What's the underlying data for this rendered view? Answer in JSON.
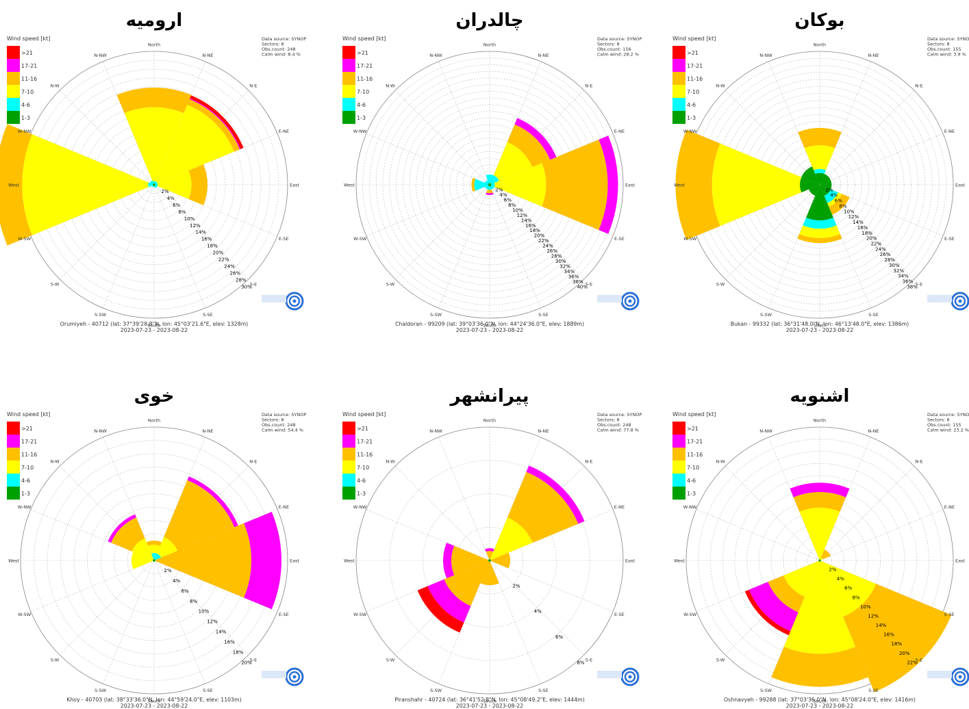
{
  "legend": {
    "title": "Wind speed [kt]",
    "bins": [
      {
        "label": ">21",
        "color": "#ff0000"
      },
      {
        "label": "17-21",
        "color": "#ff00ff"
      },
      {
        "label": "11-16",
        "color": "#ffc000"
      },
      {
        "label": "7-10",
        "color": "#ffff00"
      },
      {
        "label": "4-6",
        "color": "#00ffff"
      },
      {
        "label": "1-3",
        "color": "#00a000"
      }
    ]
  },
  "directions": [
    "North",
    "N-NE",
    "N-E",
    "E-NE",
    "East",
    "E-SE",
    "S-E",
    "S-SE",
    "South",
    "S-SW",
    "S-W",
    "W-SW",
    "West",
    "W-NW",
    "N-W",
    "N-NW"
  ],
  "period": "2023-07-23 - 2023-08-22",
  "chart_data": [
    {
      "type": "windrose",
      "title": "ارومیه",
      "info": [
        "Data source: SYNOP",
        "Sectors: 8",
        "Obs.count: 248",
        "Calm wind: 8.4 %"
      ],
      "station": "Orumiyeh - 40712 (lat: 37°39'28.8\"N, lon: 45°03'21.6\"E, elev: 1328m)",
      "rmax": 30,
      "ticks": [
        2,
        4,
        6,
        8,
        10,
        12,
        14,
        16,
        18,
        20,
        22,
        24,
        26,
        28,
        30
      ],
      "sectors": [
        {
          "dir": "North",
          "cum": [
            0.3,
            0.8,
            17,
            21.3,
            21.3,
            21.3
          ]
        },
        {
          "dir": "N-E",
          "cum": [
            0.3,
            0.8,
            19,
            20.3,
            20.5,
            21.2
          ]
        },
        {
          "dir": "East",
          "cum": [
            0.3,
            0.8,
            8.2,
            11.7,
            11.7,
            11.7
          ]
        },
        {
          "dir": "S-E",
          "cum": [
            0.3,
            0.8,
            0.8,
            0.8,
            0.8,
            0.8
          ]
        },
        {
          "dir": "South",
          "cum": [
            0.3,
            0.5,
            0.5,
            0.5,
            0.5,
            0.5
          ]
        },
        {
          "dir": "S-W",
          "cum": [
            0.3,
            0.5,
            0.5,
            0.5,
            0.5,
            0.5
          ]
        },
        {
          "dir": "West",
          "cum": [
            0.3,
            1.3,
            28.9,
            34.8,
            34.8,
            34.8
          ]
        },
        {
          "dir": "N-W",
          "cum": [
            0.3,
            1.0,
            1.0,
            1.0,
            1.0,
            1.0
          ]
        }
      ]
    },
    {
      "type": "windrose",
      "title": "چالدران",
      "info": [
        "Data source: SYNOP",
        "Sectors: 8",
        "Obs.count: 156",
        "Calm wind: 28.2 %"
      ],
      "station": "Chaldoran - 99209 (lat: 39°03'36.0\"N, lon: 44°24'36.0\"E, elev: 1889m)",
      "rmax": 40,
      "ticks": [
        2,
        4,
        6,
        8,
        10,
        12,
        14,
        16,
        18,
        20,
        22,
        24,
        26,
        28,
        30,
        32,
        34,
        36,
        38,
        40
      ],
      "sectors": [
        {
          "dir": "North",
          "cum": [
            0.5,
            3.0,
            3.0,
            3.0,
            3.0,
            3.0
          ]
        },
        {
          "dir": "N-E",
          "cum": [
            0.5,
            3.0,
            13.5,
            19.1,
            21.1,
            21.1
          ]
        },
        {
          "dir": "East",
          "cum": [
            0.5,
            1.5,
            16.5,
            34.5,
            37.5,
            37.5
          ]
        },
        {
          "dir": "S-E",
          "cum": [
            0.5,
            1.5,
            1.5,
            1.5,
            1.5,
            1.5
          ]
        },
        {
          "dir": "South",
          "cum": [
            0.5,
            1.5,
            1.5,
            2.5,
            3.0,
            3.0
          ]
        },
        {
          "dir": "S-W",
          "cum": [
            0.5,
            1.5,
            1.5,
            1.5,
            1.5,
            1.5
          ]
        },
        {
          "dir": "West",
          "cum": [
            0.5,
            4.5,
            4.5,
            5.3,
            5.3,
            5.3
          ]
        },
        {
          "dir": "N-W",
          "cum": [
            0.5,
            1.5,
            1.5,
            1.5,
            1.5,
            1.5
          ]
        }
      ]
    },
    {
      "type": "windrose",
      "title": "بوکان",
      "info": [
        "Data source: SYNOP",
        "Sectors: 8",
        "Obs.count: 155",
        "Calm wind: 3.9 %"
      ],
      "station": "Bukan - 99332 (lat: 36°31'48.0\"N, lon: 46°13'48.0\"E, elev: 1386m)",
      "rmax": 38,
      "ticks": [
        2,
        4,
        6,
        8,
        10,
        12,
        14,
        16,
        18,
        20,
        22,
        24,
        26,
        28,
        30,
        32,
        34,
        36,
        38
      ],
      "sectors": [
        {
          "dir": "North",
          "cum": [
            3.3,
            4.4,
            11.0,
            15.8,
            15.8,
            15.8
          ]
        },
        {
          "dir": "N-E",
          "cum": [
            3.3,
            3.3,
            3.3,
            3.3,
            3.3,
            3.3
          ]
        },
        {
          "dir": "East",
          "cum": [
            3.3,
            3.3,
            3.3,
            3.3,
            3.3,
            3.3
          ]
        },
        {
          "dir": "S-E",
          "cum": [
            3.3,
            5.5,
            6.6,
            9.0,
            9.0,
            9.0
          ]
        },
        {
          "dir": "South",
          "cum": [
            9.9,
            12.2,
            14.8,
            16.2,
            16.2,
            16.2
          ]
        },
        {
          "dir": "S-W",
          "cum": [
            3.3,
            3.3,
            3.3,
            3.3,
            3.3,
            3.3
          ]
        },
        {
          "dir": "West",
          "cum": [
            5.5,
            5.5,
            29.9,
            40.0,
            40.0,
            40.0
          ]
        },
        {
          "dir": "N-W",
          "cum": [
            5.5,
            5.5,
            5.5,
            5.5,
            5.5,
            5.5
          ]
        }
      ]
    },
    {
      "type": "windrose",
      "title": "خوی",
      "info": [
        "Data source: SYNOP",
        "Sectors: 8",
        "Obs.count: 248",
        "Calm wind: 54.4 %"
      ],
      "station": "Khoy - 40703 (lat: 38°33'36.0\"N, lon: 44°59'24.0\"E, elev: 1103m)",
      "rmax": 20,
      "ticks": [
        2,
        4,
        6,
        8,
        10,
        12,
        14,
        16,
        18,
        20
      ],
      "sectors": [
        {
          "dir": "North",
          "cum": [
            0.2,
            1.1,
            2.3,
            2.9,
            2.9,
            2.9
          ]
        },
        {
          "dir": "N-E",
          "cum": [
            0.2,
            1.1,
            3.7,
            12.7,
            13.3,
            13.3
          ]
        },
        {
          "dir": "East",
          "cum": [
            0.2,
            0.2,
            0.2,
            14.2,
            18.6,
            18.6
          ]
        },
        {
          "dir": "S-E",
          "cum": [
            0.2,
            0.2,
            0.2,
            0.2,
            0.2,
            0.2
          ]
        },
        {
          "dir": "South",
          "cum": [
            0.2,
            0.2,
            0.2,
            0.2,
            0.2,
            0.2
          ]
        },
        {
          "dir": "S-W",
          "cum": [
            0.2,
            0.2,
            0.2,
            0.2,
            0.2,
            0.2
          ]
        },
        {
          "dir": "West",
          "cum": [
            0.2,
            0.2,
            3.3,
            3.3,
            3.3,
            3.3
          ]
        },
        {
          "dir": "N-W",
          "cum": [
            0.2,
            0.2,
            3.5,
            6.8,
            7.3,
            7.3
          ]
        }
      ]
    },
    {
      "type": "windrose",
      "title": "پیرانشهر",
      "info": [
        "Data source: SYNOP",
        "Sectors: 8",
        "Obs.count: 248",
        "Calm wind: 77.8 %"
      ],
      "station": "Piranshahr - 40724 (lat: 36°41'52.8\"N, lon: 45°08'49.2\"E, elev: 1444m)",
      "rmax": 10,
      "ticks": [
        2,
        4,
        6,
        8
      ],
      "sectors": [
        {
          "dir": "North",
          "cum": [
            0.1,
            0.1,
            0.1,
            0.7,
            0.9,
            0.9
          ]
        },
        {
          "dir": "N-E",
          "cum": [
            0.1,
            0.1,
            3.4,
            7.0,
            7.5,
            7.5
          ]
        },
        {
          "dir": "East",
          "cum": [
            0.1,
            0.1,
            0.1,
            1.5,
            1.5,
            1.5
          ]
        },
        {
          "dir": "S-E",
          "cum": [
            0.1,
            0.1,
            0.1,
            0.1,
            0.1,
            0.1
          ]
        },
        {
          "dir": "South",
          "cum": [
            0.1,
            0.1,
            0.1,
            1.8,
            1.8,
            1.8
          ]
        },
        {
          "dir": "S-W",
          "cum": [
            0.1,
            0.1,
            0.1,
            3.6,
            4.9,
            5.7
          ]
        },
        {
          "dir": "West",
          "cum": [
            0.1,
            0.1,
            0.1,
            2.8,
            3.4,
            3.4
          ]
        },
        {
          "dir": "N-W",
          "cum": [
            0.1,
            0.1,
            0.1,
            0.1,
            0.1,
            0.1
          ]
        }
      ]
    },
    {
      "type": "windrose",
      "title": "اشنویه",
      "info": [
        "Data source: SYNOP",
        "Sectors: 8",
        "Obs.count: 155",
        "Calm wind: 23.2 %"
      ],
      "station": "Oshnavyeh - 99288 (lat: 37°03'36.0\"N, lon: 45°08'24.0\"E, elev: 1416m)",
      "rmax": 22,
      "ticks": [
        2,
        4,
        6,
        8,
        10,
        12,
        14,
        16,
        18,
        20,
        22
      ],
      "sectors": [
        {
          "dir": "North",
          "cum": [
            0.2,
            0.2,
            8.5,
            11.0,
            12.5,
            12.5
          ]
        },
        {
          "dir": "N-E",
          "cum": [
            0.2,
            0.2,
            0.5,
            1.9,
            1.9,
            1.9
          ]
        },
        {
          "dir": "East",
          "cum": [
            0.2,
            0.2,
            0.2,
            0.2,
            0.2,
            0.2
          ]
        },
        {
          "dir": "S-E",
          "cum": [
            0.2,
            0.2,
            9.8,
            22.9,
            22.9,
            22.9
          ]
        },
        {
          "dir": "South",
          "cum": [
            0.2,
            0.2,
            15.0,
            20.3,
            20.3,
            20.3
          ]
        },
        {
          "dir": "S-W",
          "cum": [
            0.2,
            0.2,
            6.3,
            9.0,
            12.3,
            13.0
          ]
        },
        {
          "dir": "West",
          "cum": [
            0.2,
            0.2,
            0.2,
            0.2,
            0.2,
            0.2
          ]
        },
        {
          "dir": "N-W",
          "cum": [
            0.2,
            0.2,
            0.2,
            0.2,
            0.2,
            0.2
          ]
        }
      ]
    }
  ]
}
